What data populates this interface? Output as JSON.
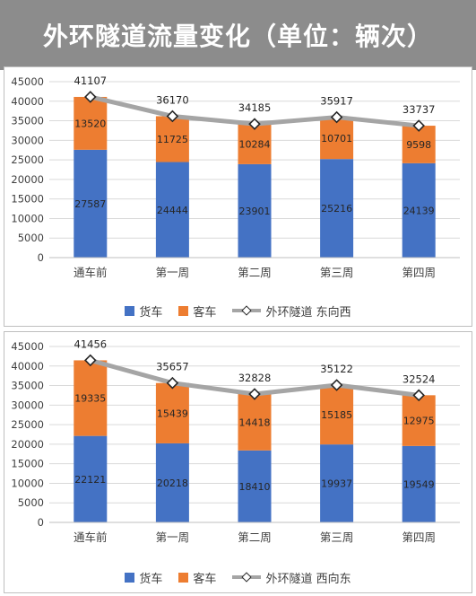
{
  "header": {
    "title": "外环隧道流量变化（单位：辆次）"
  },
  "colors": {
    "truck": "#4472c4",
    "bus": "#ed7d31",
    "line": "#a5a5a5",
    "header_bg": "#8c8c8c"
  },
  "chart_data": [
    {
      "type": "bar",
      "stacked": true,
      "categories": [
        "通车前",
        "第一周",
        "第二周",
        "第三周",
        "第四周"
      ],
      "series": [
        {
          "name": "货车",
          "type": "bar",
          "values": [
            27587,
            24444,
            23901,
            25216,
            24139
          ]
        },
        {
          "name": "客车",
          "type": "bar",
          "values": [
            13520,
            11725,
            10284,
            10701,
            9598
          ]
        },
        {
          "name": "外环隧道 东向西",
          "type": "line",
          "values": [
            41107,
            36170,
            34185,
            35917,
            33737
          ]
        }
      ],
      "ylim": [
        0,
        45000
      ],
      "yticks": [
        0,
        5000,
        10000,
        15000,
        20000,
        25000,
        30000,
        35000,
        40000,
        45000
      ],
      "grid": true,
      "legend": "bottom"
    },
    {
      "type": "bar",
      "stacked": true,
      "categories": [
        "通车前",
        "第一周",
        "第二周",
        "第三周",
        "第四周"
      ],
      "series": [
        {
          "name": "货车",
          "type": "bar",
          "values": [
            22121,
            20218,
            18410,
            19937,
            19549
          ]
        },
        {
          "name": "客车",
          "type": "bar",
          "values": [
            19335,
            15439,
            14418,
            15185,
            12975
          ]
        },
        {
          "name": "外环隧道 西向东",
          "type": "line",
          "values": [
            41456,
            35657,
            32828,
            35122,
            32524
          ]
        }
      ],
      "ylim": [
        0,
        45000
      ],
      "yticks": [
        0,
        5000,
        10000,
        15000,
        20000,
        25000,
        30000,
        35000,
        40000,
        45000
      ],
      "grid": true,
      "legend": "bottom"
    }
  ]
}
